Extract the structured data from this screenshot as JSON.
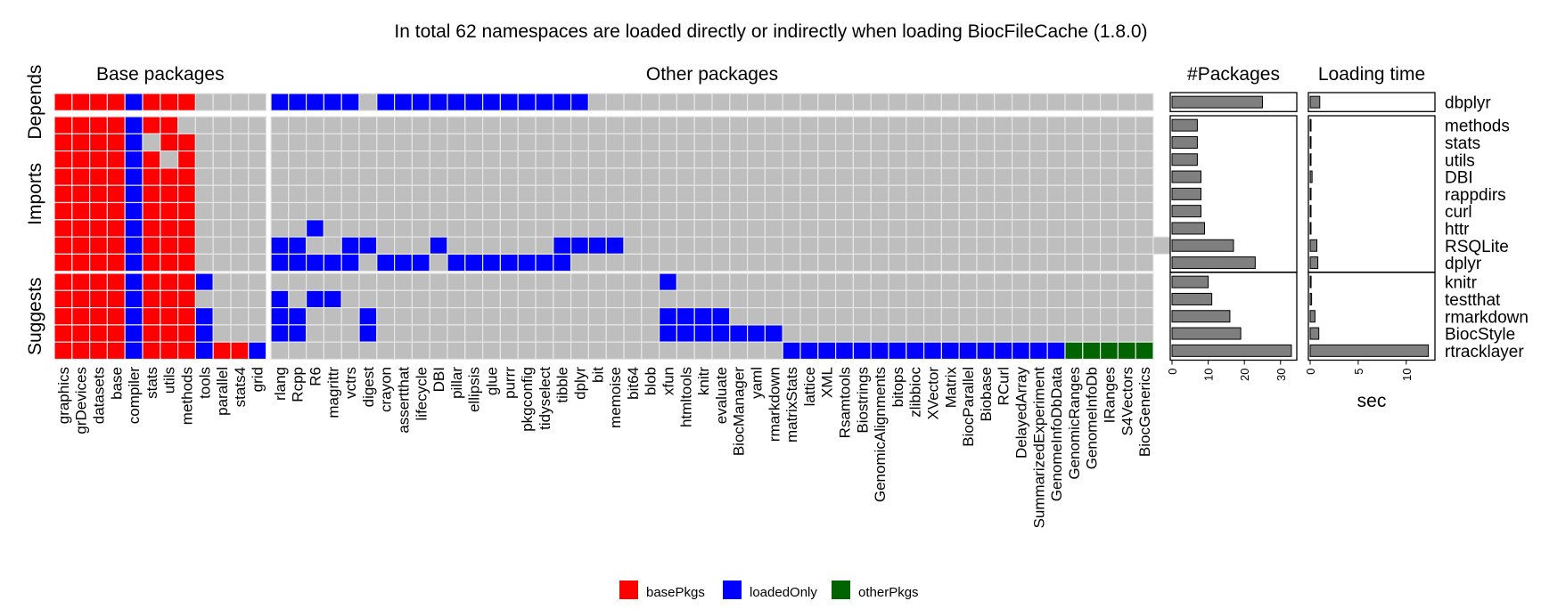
{
  "title": "In total 62 namespaces are loaded directly or indirectly when loading BiocFileCache (1.8.0)",
  "colors": {
    "basePkgs": "#ff0000",
    "loadedOnly": "#0000ff",
    "otherPkgs": "#006400",
    "empty": "#bebebe",
    "bar": "#7f7f7f"
  },
  "chart_data": {
    "type": "heatmap",
    "column_groups": [
      {
        "label": "Base packages",
        "columns": [
          "graphics",
          "grDevices",
          "datasets",
          "base",
          "compiler",
          "stats",
          "utils",
          "methods",
          "tools",
          "parallel",
          "stats4",
          "grid"
        ]
      },
      {
        "label": "Other packages",
        "columns": [
          "rlang",
          "Rcpp",
          "R6",
          "magrittr",
          "vctrs",
          "digest",
          "crayon",
          "assertthat",
          "lifecycle",
          "DBI",
          "pillar",
          "ellipsis",
          "glue",
          "purrr",
          "pkgconfig",
          "tidyselect",
          "tibble",
          "dplyr",
          "bit",
          "memoise",
          "bit64",
          "blob",
          "xfun",
          "htmltools",
          "knitr",
          "evaluate",
          "BiocManager",
          "yaml",
          "rmarkdown",
          "matrixStats",
          "lattice",
          "XML",
          "Rsamtools",
          "Biostrings",
          "GenomicAlignments",
          "bitops",
          "zlibbioc",
          "XVector",
          "Matrix",
          "BiocParallel",
          "Biobase",
          "RCurl",
          "DelayedArray",
          "SummarizedExperiment",
          "GenomeInfoDbData",
          "GenomicRanges",
          "GenomeInfoDb",
          "IRanges",
          "S4Vectors",
          "BiocGenerics"
        ]
      }
    ],
    "row_groups": [
      {
        "label": "Depends",
        "rows": [
          {
            "name": "dbplyr",
            "cells": "RRRRBRRR....|BBBBB.BBBBBBBBBBBB................................"
          }
        ]
      },
      {
        "label": "Imports",
        "rows": [
          {
            "name": "methods",
            "cells": "RRRRBRR.....|.................................................."
          },
          {
            "name": "stats",
            "cells": "RRRRB.RR....|.................................................."
          },
          {
            "name": "utils",
            "cells": "RRRRBR.R....|.................................................."
          },
          {
            "name": "DBI",
            "cells": "RRRRBRRR....|.................................................."
          },
          {
            "name": "rappdirs",
            "cells": "RRRRBRRR....|.................................................."
          },
          {
            "name": "curl",
            "cells": "RRRRBRRR....|.................................................."
          },
          {
            "name": "httr",
            "cells": "RRRRBRRR....|..B..............................................."
          },
          {
            "name": "RSQLite",
            "cells": "RRRRBRRR....|BB..BB...B......BBBB..............................."
          },
          {
            "name": "dplyr",
            "cells": "RRRRBRRR....|BBBBB.BBB.BBBBBBB................................."
          }
        ]
      },
      {
        "label": "Suggests",
        "rows": [
          {
            "name": "knitr",
            "cells": "RRRRBRRRB...|......................B..........................."
          },
          {
            "name": "testthat",
            "cells": "RRRRBRRR....|B.BB.............................................."
          },
          {
            "name": "rmarkdown",
            "cells": "RRRRBRRRB...|BB...B................BBBB........................"
          },
          {
            "name": "BiocStyle",
            "cells": "RRRRBRRRB...|BB...B................BBBBBBB....................."
          },
          {
            "name": "rtracklayer",
            "cells": "RRRRBRRRBRRB|.............................BBBBBBBBBBBBBBBBGGGGG"
          }
        ]
      }
    ],
    "packages": {
      "title": "#Packages",
      "xticks": [
        0,
        10,
        20,
        30
      ],
      "xlim": [
        0,
        34
      ],
      "values": {
        "dbplyr": 25,
        "methods": 7,
        "stats": 7,
        "utils": 7,
        "DBI": 8,
        "rappdirs": 8,
        "curl": 8,
        "httr": 9,
        "RSQLite": 17,
        "dplyr": 23,
        "knitr": 10,
        "testthat": 11,
        "rmarkdown": 16,
        "BiocStyle": 19,
        "rtracklayer": 33
      }
    },
    "loading_time": {
      "title": "Loading time",
      "xlabel": "sec",
      "xticks": [
        0,
        5,
        10
      ],
      "xlim": [
        0,
        12.8
      ],
      "values": {
        "dbplyr": 1.0,
        "methods": 0.03,
        "stats": 0.03,
        "utils": 0.03,
        "DBI": 0.2,
        "rappdirs": 0.05,
        "curl": 0.05,
        "httr": 0.05,
        "RSQLite": 0.7,
        "dplyr": 0.8,
        "knitr": 0.1,
        "testthat": 0.15,
        "rmarkdown": 0.5,
        "BiocStyle": 0.9,
        "rtracklayer": 12.3
      }
    },
    "legend": {
      "position": "bottom",
      "items": [
        {
          "label": "basePkgs",
          "key": "basePkgs"
        },
        {
          "label": "loadedOnly",
          "key": "loadedOnly"
        },
        {
          "label": "otherPkgs",
          "key": "otherPkgs"
        }
      ]
    }
  }
}
